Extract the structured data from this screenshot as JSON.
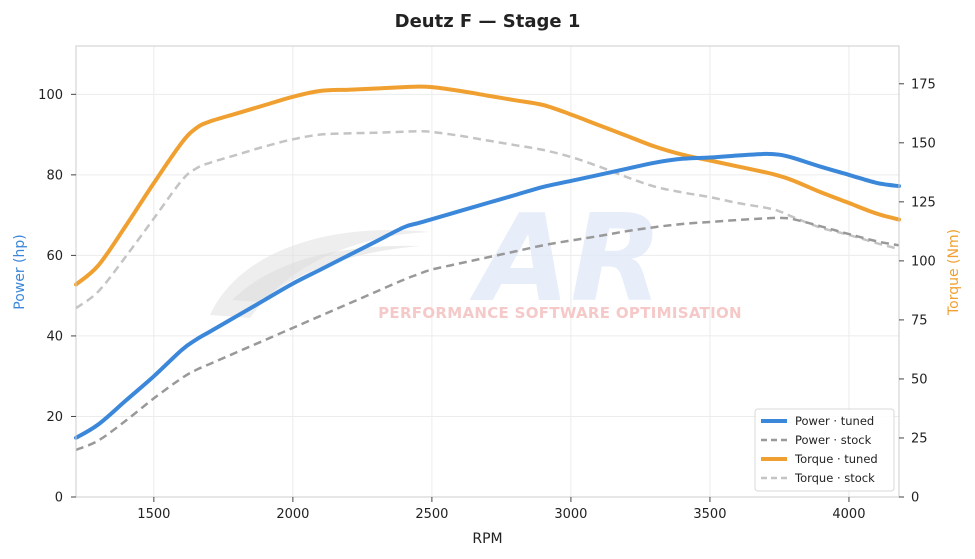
{
  "chart_data": {
    "type": "line",
    "title": "Deutz F — Stage 1",
    "xlabel": "RPM",
    "ylabel_left": "Power (hp)",
    "ylabel_right": "Torque (Nm)",
    "xlim": [
      1220,
      4180
    ],
    "ylim_left": [
      0,
      112
    ],
    "ylim_right": [
      0,
      191
    ],
    "xticks": [
      1500,
      2000,
      2500,
      3000,
      3500,
      4000
    ],
    "yticks_left": [
      0,
      20,
      40,
      60,
      80,
      100
    ],
    "yticks_right": [
      0,
      25,
      50,
      75,
      100,
      125,
      150,
      175
    ],
    "grid": true,
    "legend_position": "bottom-right",
    "x": [
      1220,
      1300,
      1400,
      1500,
      1600,
      1650,
      1700,
      1800,
      1900,
      2000,
      2100,
      2200,
      2300,
      2400,
      2450,
      2500,
      2600,
      2700,
      2800,
      2900,
      3000,
      3100,
      3200,
      3300,
      3400,
      3500,
      3600,
      3700,
      3750,
      3800,
      3900,
      4000,
      4100,
      4180
    ],
    "series": [
      {
        "name": "Power · tuned",
        "axis": "left",
        "color": "#3b87d9",
        "dash": "solid",
        "values": [
          14.7,
          18.0,
          24.0,
          30.0,
          36.5,
          39.0,
          41.0,
          45.0,
          49.0,
          53.0,
          56.5,
          60.0,
          63.5,
          67.0,
          68.0,
          69.0,
          71.0,
          73.0,
          75.0,
          77.0,
          78.5,
          80.0,
          81.5,
          83.0,
          84.0,
          84.3,
          84.8,
          85.2,
          85.0,
          84.2,
          82.0,
          80.0,
          78.0,
          77.2
        ]
      },
      {
        "name": "Power · stock",
        "axis": "left",
        "color": "#999999",
        "dash": "dashed",
        "values": [
          11.7,
          14.0,
          19.0,
          24.5,
          29.5,
          31.5,
          33.0,
          36.0,
          39.0,
          42.0,
          45.0,
          48.0,
          51.0,
          54.0,
          55.3,
          56.5,
          58.0,
          59.5,
          61.0,
          62.5,
          63.7,
          64.8,
          66.0,
          67.0,
          67.8,
          68.3,
          68.8,
          69.2,
          69.3,
          69.0,
          67.2,
          65.3,
          63.5,
          62.5
        ]
      },
      {
        "name": "Torque · tuned",
        "axis": "right",
        "color": "#f0a030",
        "dash": "solid",
        "values": [
          90.0,
          98.0,
          115.0,
          133.0,
          150.0,
          156.0,
          159.0,
          162.5,
          166.0,
          169.5,
          172.0,
          172.5,
          173.0,
          173.6,
          173.8,
          173.6,
          172.0,
          170.0,
          168.0,
          166.0,
          162.0,
          157.5,
          153.0,
          148.5,
          145.0,
          142.5,
          140.0,
          137.5,
          136.0,
          134.0,
          129.0,
          124.5,
          120.0,
          117.5
        ]
      },
      {
        "name": "Torque · stock",
        "axis": "right",
        "color": "#c4c4c4",
        "dash": "dashed",
        "values": [
          80.0,
          87.0,
          102.0,
          118.0,
          134.0,
          139.0,
          141.5,
          145.0,
          148.5,
          151.5,
          153.5,
          154.0,
          154.3,
          154.7,
          154.9,
          154.6,
          153.0,
          151.0,
          149.0,
          147.0,
          144.0,
          140.0,
          135.5,
          131.5,
          129.0,
          127.0,
          124.5,
          122.5,
          121.0,
          118.5,
          114.0,
          111.0,
          107.5,
          105.0
        ]
      }
    ]
  },
  "watermark": {
    "logo_text": "AR",
    "subtitle": "PERFORMANCE SOFTWARE OPTIMISATION"
  }
}
